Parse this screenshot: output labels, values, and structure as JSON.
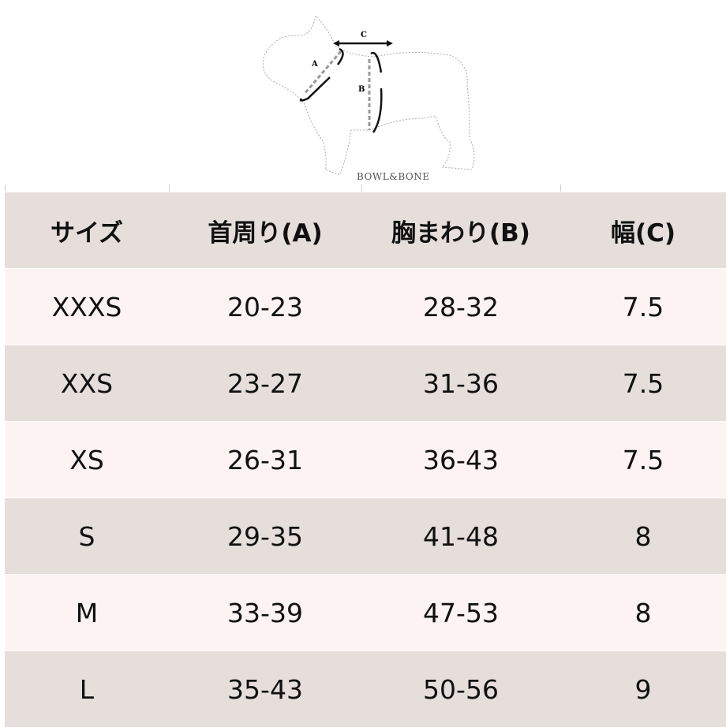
{
  "diagram": {
    "labels": {
      "a": "A",
      "b": "B",
      "c": "C"
    },
    "brand": "BOWL&BONE"
  },
  "colors": {
    "header_bg": "#e5dedb",
    "row_pink": "#fdf3f3",
    "row_gray": "#e5dedb"
  },
  "table": {
    "headers": [
      "サイズ",
      "首周り(A)",
      "胸まわり(B)",
      "幅(C)"
    ],
    "rows": [
      [
        "XXXS",
        "20-23",
        "28-32",
        "7.5"
      ],
      [
        "XXS",
        "23-27",
        "31-36",
        "7.5"
      ],
      [
        "XS",
        "26-31",
        "36-43",
        "7.5"
      ],
      [
        "S",
        "29-35",
        "41-48",
        "8"
      ],
      [
        "M",
        "33-39",
        "47-53",
        "8"
      ],
      [
        "L",
        "35-43",
        "50-56",
        "9"
      ]
    ]
  }
}
